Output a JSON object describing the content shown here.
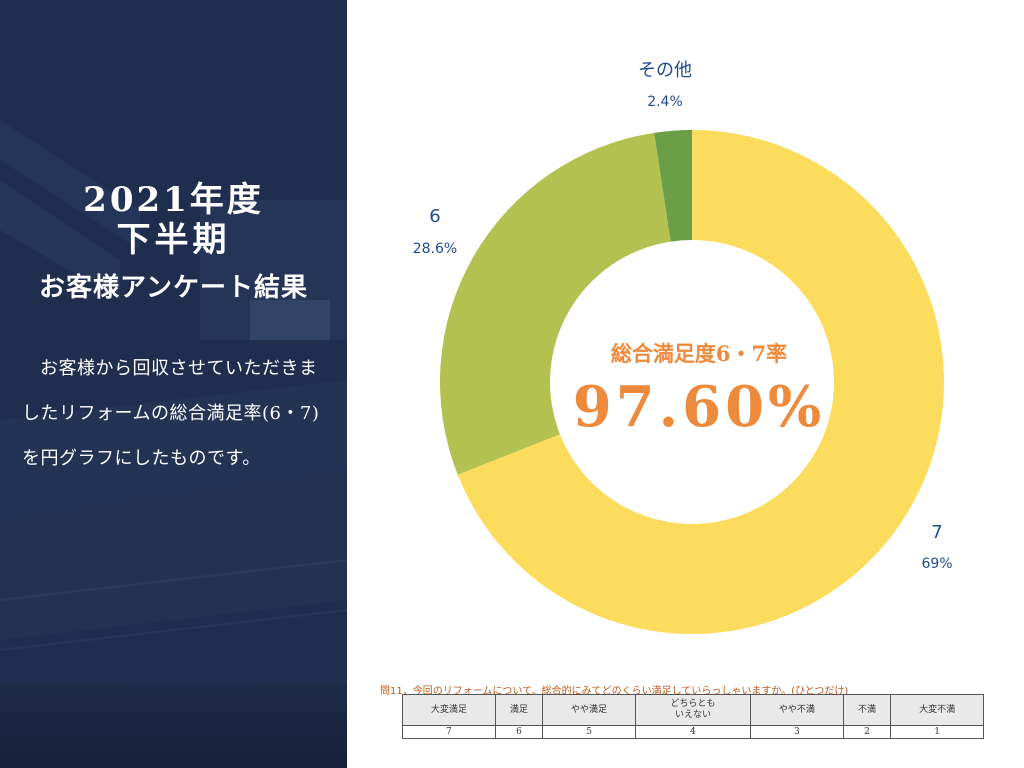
{
  "left": {
    "title_year": "2021年度",
    "title_half": "下半期",
    "title_survey": "お客様アンケート結果",
    "description": "お客様から回収させていただきましたリフォームの総合満足率(6・7)を円グラフにしたものです。"
  },
  "chart_data": {
    "type": "pie",
    "variant": "donut",
    "center_title": "総合満足度6・7率",
    "center_value": "97.60%",
    "slices": [
      {
        "label": "7",
        "value": 69,
        "value_label": "69%",
        "color": "#fcdc5c"
      },
      {
        "label": "6",
        "value": 28.6,
        "value_label": "28.6%",
        "color": "#b2c150"
      },
      {
        "label": "その他",
        "value": 2.4,
        "value_label": "2.4%",
        "color": "#6a9f48"
      }
    ],
    "start_angle_deg": 0,
    "direction": "clockwise",
    "labels_color": "#1f4b8f",
    "center_color": "#ee8a3c"
  },
  "question": {
    "text": "問11．今回のリフォームについて、総合的にみてどのくらい満足していらっしゃいますか。(ひとつだけ)",
    "headers": [
      "大変満足",
      "満足",
      "やや満足",
      "どちらとも\nいえない",
      "やや不満",
      "不満",
      "大変不満"
    ],
    "values": [
      "7",
      "6",
      "5",
      "4",
      "3",
      "2",
      "1"
    ]
  }
}
